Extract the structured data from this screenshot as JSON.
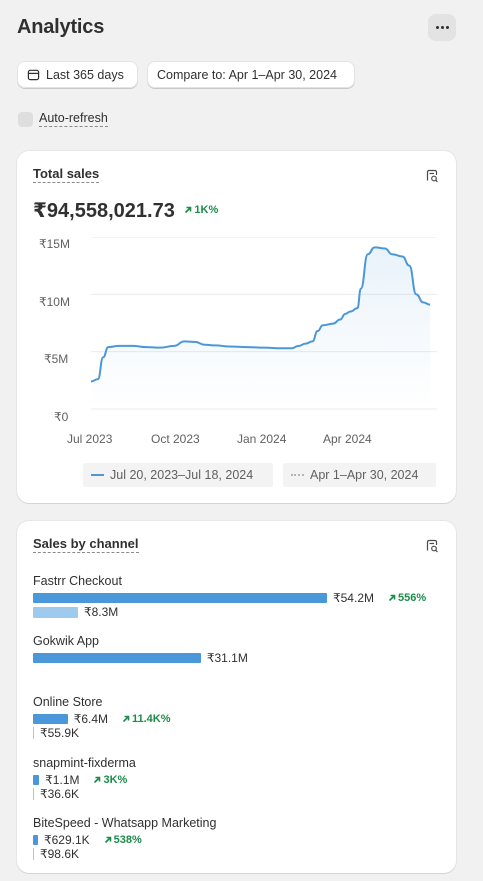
{
  "header": {
    "title": "Analytics",
    "more_icon": "more-horizontal-icon"
  },
  "filters": {
    "date_range": "Last 365 days",
    "compare": "Compare to: Apr 1–Apr 30, 2024"
  },
  "auto_refresh": {
    "label": "Auto-refresh",
    "checked": false
  },
  "total_sales": {
    "title": "Total sales",
    "value": "₹94,558,021.73",
    "change": "1K%",
    "chart_data": {
      "type": "line",
      "ylabels": [
        "₹15M",
        "₹10M",
        "₹5M",
        "₹0"
      ],
      "xlabels": [
        "Jul 2023",
        "Oct 2023",
        "Jan 2024",
        "Apr 2024"
      ],
      "ylim": [
        0,
        15000000
      ],
      "series": [
        {
          "name": "Jul 20, 2023–Jul 18, 2024",
          "color": "#4a98d9",
          "values": [
            [
              0,
              2.4
            ],
            [
              0.02,
              2.6
            ],
            [
              0.035,
              4.5
            ],
            [
              0.05,
              5.4
            ],
            [
              0.08,
              5.5
            ],
            [
              0.12,
              5.5
            ],
            [
              0.16,
              5.4
            ],
            [
              0.2,
              5.35
            ],
            [
              0.24,
              5.5
            ],
            [
              0.27,
              5.9
            ],
            [
              0.3,
              5.85
            ],
            [
              0.33,
              5.6
            ],
            [
              0.36,
              5.55
            ],
            [
              0.4,
              5.45
            ],
            [
              0.45,
              5.4
            ],
            [
              0.5,
              5.35
            ],
            [
              0.55,
              5.3
            ],
            [
              0.58,
              5.3
            ],
            [
              0.6,
              5.5
            ],
            [
              0.62,
              5.7
            ],
            [
              0.64,
              5.9
            ],
            [
              0.655,
              6.8
            ],
            [
              0.67,
              7.3
            ],
            [
              0.7,
              7.45
            ],
            [
              0.72,
              7.8
            ],
            [
              0.735,
              8.3
            ],
            [
              0.75,
              8.5
            ],
            [
              0.77,
              8.8
            ],
            [
              0.78,
              10.5
            ],
            [
              0.8,
              13.5
            ],
            [
              0.82,
              14.1
            ],
            [
              0.85,
              14.0
            ],
            [
              0.87,
              13.5
            ],
            [
              0.9,
              13.3
            ],
            [
              0.92,
              12.5
            ],
            [
              0.94,
              10
            ],
            [
              0.96,
              9.3
            ],
            [
              0.98,
              9.1
            ]
          ]
        },
        {
          "name": "Apr 1–Apr 30, 2024",
          "color": "#c9c9c9",
          "values": []
        }
      ],
      "grid": true
    }
  },
  "sales_by_channel": {
    "title": "Sales by channel",
    "channels": [
      {
        "name": "Fastrr Checkout",
        "current": "₹54.2M",
        "current_frac": 1.0,
        "previous": "₹8.3M",
        "previous_frac": 0.153,
        "change": "556%"
      },
      {
        "name": "Gokwik App",
        "current": "₹31.1M",
        "current_frac": 0.571,
        "previous": "",
        "previous_frac": 0,
        "change": ""
      },
      {
        "name": "Online Store",
        "current": "₹6.4M",
        "current_frac": 0.118,
        "previous": "₹55.9K",
        "previous_frac": 0.001,
        "change": "11.4K%"
      },
      {
        "name": "snapmint-fixderma",
        "current": "₹1.1M",
        "current_frac": 0.021,
        "previous": "₹36.6K",
        "previous_frac": 0.001,
        "change": "3K%"
      },
      {
        "name": "BiteSpeed - Whatsapp Marketing",
        "current": "₹629.1K",
        "current_frac": 0.012,
        "previous": "₹98.6K",
        "previous_frac": 0.002,
        "change": "538%"
      }
    ]
  }
}
